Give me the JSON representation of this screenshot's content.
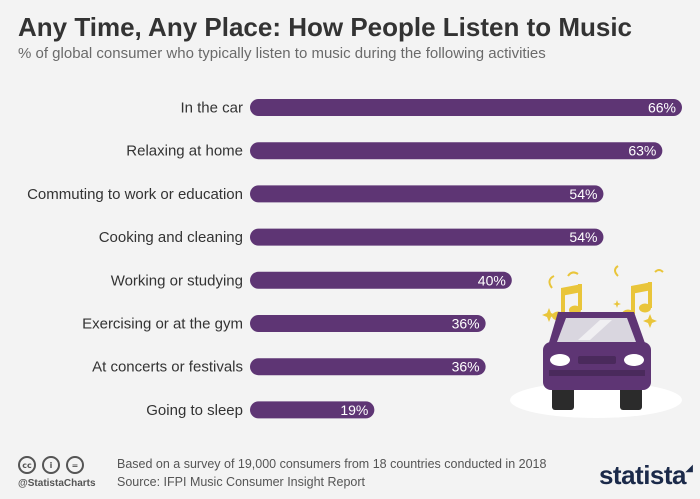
{
  "header": {
    "title": "Any Time, Any Place: How People Listen to Music",
    "subtitle": "% of global consumer who typically listen to music during the following activities"
  },
  "footer": {
    "icons": [
      "creative-commons-icon",
      "attribution-icon",
      "no-derivatives-icon"
    ],
    "handle": "@StatistaCharts",
    "note": "Based on a survey of 19,000 consumers from 18 countries conducted in 2018",
    "source": "Source: IFPI Music Consumer Insight Report",
    "brand": "statista"
  },
  "colors": {
    "bar": "#5e3574",
    "bar_label": "#ffffff",
    "category_text": "#333333",
    "car_body": "#5e3574",
    "note_gold": "#e9c53a"
  },
  "chart_data": {
    "type": "bar",
    "orientation": "horizontal",
    "title": "Any Time, Any Place: How People Listen to Music",
    "subtitle": "% of global consumer who typically listen to music during the following activities",
    "categories": [
      "In the car",
      "Relaxing at home",
      "Commuting to work or education",
      "Cooking and cleaning",
      "Working or studying",
      "Exercising or at the gym",
      "At concerts or festivals",
      "Going to sleep"
    ],
    "values": [
      66,
      63,
      54,
      54,
      40,
      36,
      36,
      19
    ],
    "value_labels": [
      "66%",
      "63%",
      "54%",
      "54%",
      "40%",
      "36%",
      "36%",
      "19%"
    ],
    "unit": "%",
    "xlim": [
      0,
      66
    ],
    "grid": false,
    "legend": "none"
  }
}
